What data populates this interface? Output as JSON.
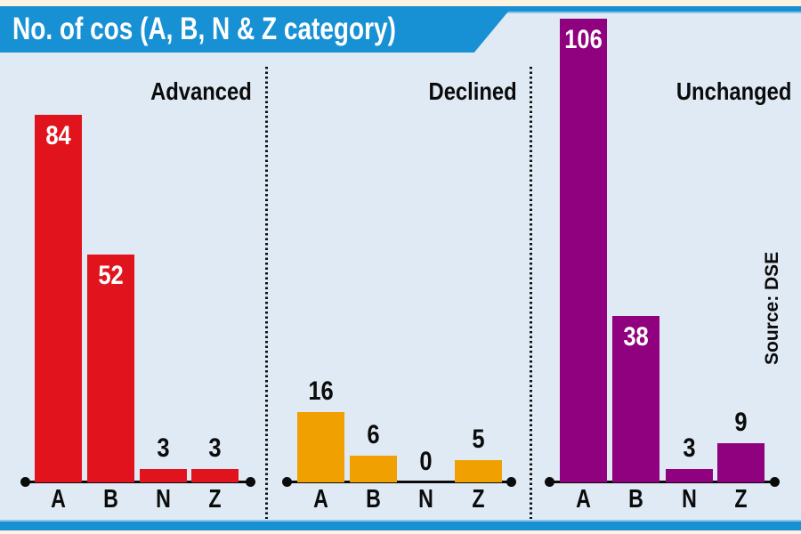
{
  "title": "No. of cos (A, B, N & Z category)",
  "source_label": "Source: DSE",
  "colors": {
    "banner_blue": "#1791d4",
    "banner_blue_light": "#8ec6ea",
    "background_cream": "#fcf3e1",
    "chart_background": "#dfeaf5",
    "advanced_red": "#e1141e",
    "declined_orange": "#f0a000",
    "unchanged_purple": "#8f017e",
    "text_black": "#0b0b0b",
    "text_white": "#ffffff"
  },
  "chart_data": {
    "type": "bar",
    "categories": [
      "A",
      "B",
      "N",
      "Z"
    ],
    "series": [
      {
        "name": "Advanced",
        "color": "#e1141e",
        "values": [
          84,
          52,
          3,
          3
        ]
      },
      {
        "name": "Declined",
        "color": "#f0a000",
        "values": [
          16,
          6,
          0,
          5
        ]
      },
      {
        "name": "Unchanged",
        "color": "#8f017e",
        "values": [
          106,
          38,
          3,
          9
        ]
      }
    ],
    "ylim": [
      0,
      106
    ],
    "grid": false,
    "legend_position": "panel-headers"
  }
}
